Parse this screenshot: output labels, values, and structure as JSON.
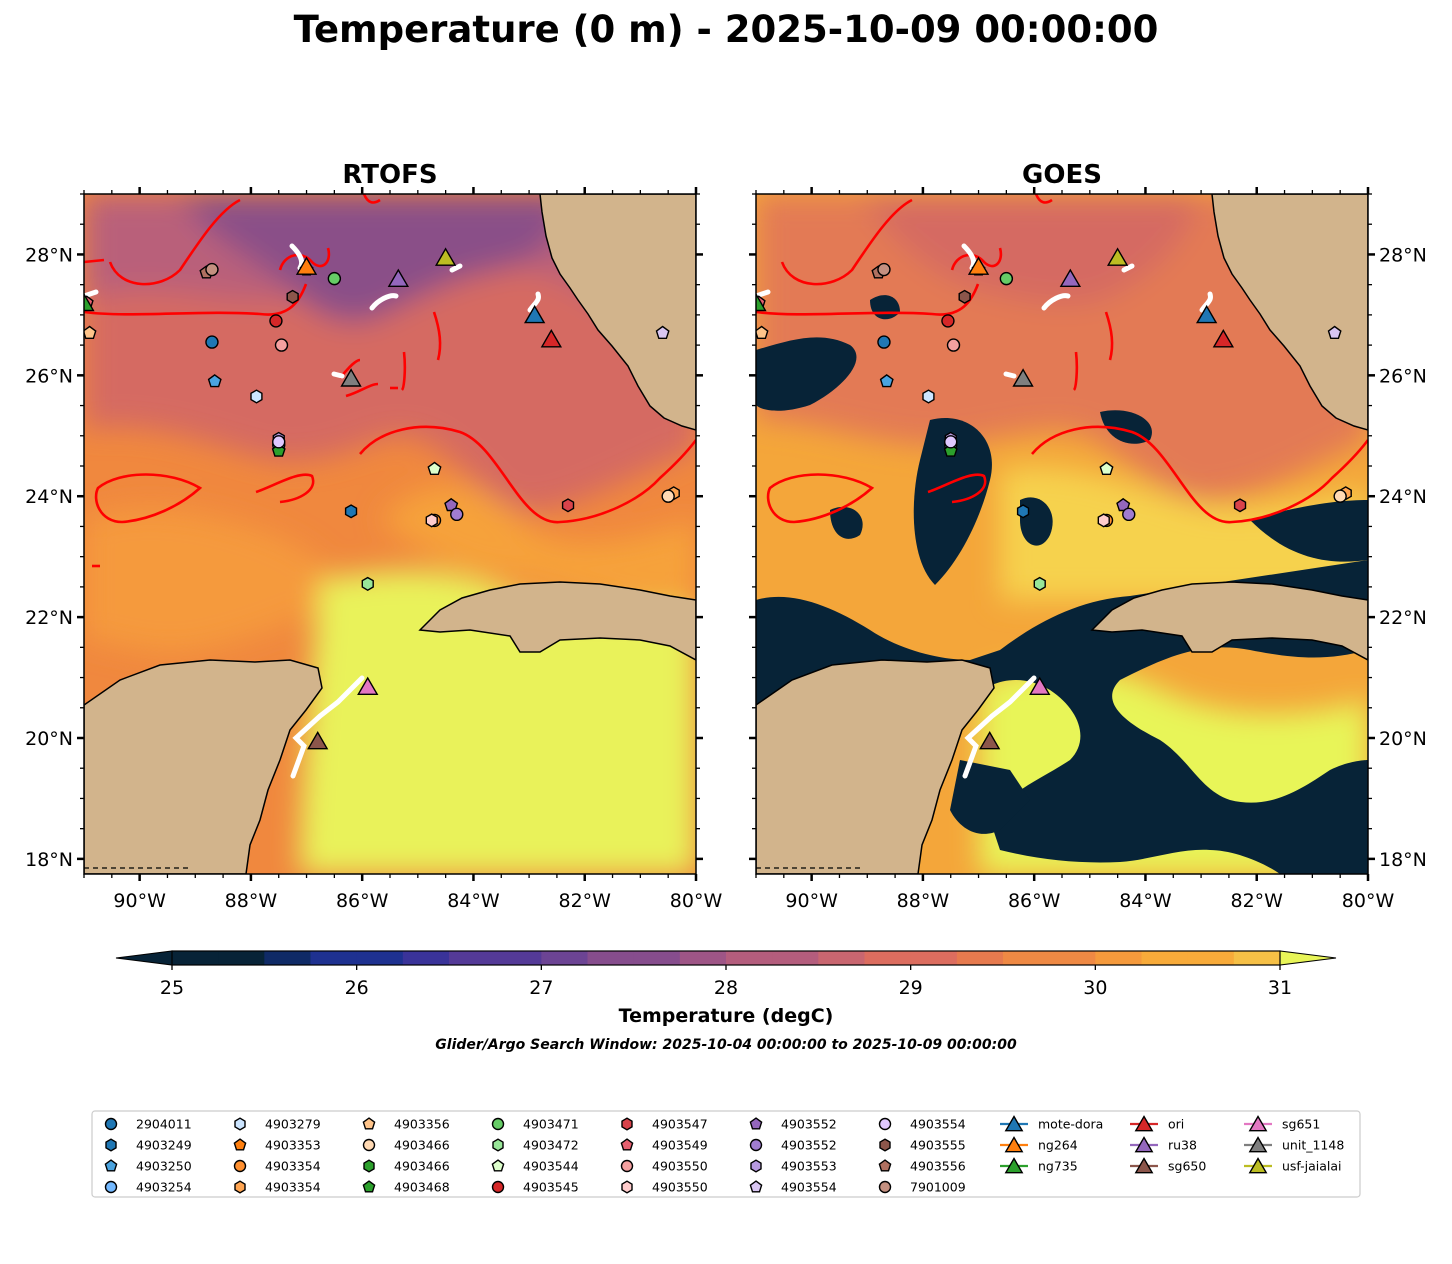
{
  "title": "Temperature (0 m) - 2025-10-09 00:00:00",
  "panels": [
    {
      "title": "RTOFS",
      "kind": "model"
    },
    {
      "title": "GOES",
      "kind": "satellite"
    }
  ],
  "map_extent": {
    "lon": [
      -91.0,
      -80.0
    ],
    "lat": [
      17.75,
      29.0
    ]
  },
  "lat_ticks": [
    {
      "value": 18,
      "label": "18°N"
    },
    {
      "value": 20,
      "label": "20°N"
    },
    {
      "value": 22,
      "label": "22°N"
    },
    {
      "value": 24,
      "label": "24°N"
    },
    {
      "value": 26,
      "label": "26°N"
    },
    {
      "value": 28,
      "label": "28°N"
    }
  ],
  "lon_ticks": [
    {
      "value": -90,
      "label": "90°W"
    },
    {
      "value": -88,
      "label": "88°W"
    },
    {
      "value": -86,
      "label": "86°W"
    },
    {
      "value": -84,
      "label": "84°W"
    },
    {
      "value": -82,
      "label": "82°W"
    },
    {
      "value": -80,
      "label": "80°W"
    }
  ],
  "colorbar": {
    "label": "Temperature (degC)",
    "min": 25,
    "max": 31,
    "step": 0.25,
    "ticks": [
      {
        "value": 25,
        "label": "25"
      },
      {
        "value": 26,
        "label": "26"
      },
      {
        "value": 27,
        "label": "27"
      },
      {
        "value": 28,
        "label": "28"
      },
      {
        "value": 29,
        "label": "29"
      },
      {
        "value": 30,
        "label": "30"
      },
      {
        "value": 31,
        "label": "31"
      }
    ],
    "colors": [
      "#072337",
      "#0f2a66",
      "#1e3190",
      "#3a3399",
      "#543a97",
      "#6c4494",
      "#864d8d",
      "#9e5586",
      "#b45d7d",
      "#c96670",
      "#dc6d5f",
      "#e67a4e",
      "#ef8944",
      "#f59a3c",
      "#f8ab3a",
      "#f6c046",
      "#e8f558"
    ]
  },
  "search_window": "Glider/Argo Search Window: 2025-10-04 00:00:00 to 2025-10-09 00:00:00",
  "land_color": "#d2b48c",
  "cloud_color": "#072337",
  "front_color": "#ff0000",
  "track_color": "#ffffff",
  "platforms": [
    {
      "name": "2904011",
      "marker": "circle",
      "color": "#1f77b4",
      "lon": -88.7,
      "lat": 26.55
    },
    {
      "name": "4903249",
      "marker": "hexagon",
      "color": "#1f77b4",
      "lon": -86.2,
      "lat": 23.75
    },
    {
      "name": "4903250",
      "marker": "pentagon",
      "color": "#4aa3df",
      "lon": -88.65,
      "lat": 25.9
    },
    {
      "name": "4903254",
      "marker": "circle",
      "color": "#74b9ff",
      "lon": -87.5,
      "lat": 24.85
    },
    {
      "name": "4903279",
      "marker": "hexagon",
      "color": "#cce5ff",
      "lon": -87.9,
      "lat": 25.65
    },
    {
      "name": "4903353",
      "marker": "pentagon",
      "color": "#ff7f0e",
      "lon": -87.0,
      "lat": 27.75
    },
    {
      "name": "4903354",
      "marker": "circle",
      "color": "#ff9030",
      "lon": -84.7,
      "lat": 23.6
    },
    {
      "name": "4903354",
      "marker": "hexagon",
      "color": "#ffa552",
      "lon": -80.4,
      "lat": 24.05
    },
    {
      "name": "4903356",
      "marker": "pentagon",
      "color": "#ffc48a",
      "lon": -90.9,
      "lat": 26.7
    },
    {
      "name": "4903466",
      "marker": "circle",
      "color": "#ffd9b3",
      "lon": -80.5,
      "lat": 24.0
    },
    {
      "name": "4903466",
      "marker": "hexagon",
      "color": "#2ca02c",
      "lon": -91.0,
      "lat": 27.2
    },
    {
      "name": "4903468",
      "marker": "pentagon",
      "color": "#2ca02c",
      "lon": -87.5,
      "lat": 24.75
    },
    {
      "name": "4903471",
      "marker": "circle",
      "color": "#66cc66",
      "lon": -86.5,
      "lat": 27.6
    },
    {
      "name": "4903472",
      "marker": "hexagon",
      "color": "#98e698",
      "lon": -85.9,
      "lat": 22.55
    },
    {
      "name": "4903544",
      "marker": "pentagon",
      "color": "#ddffcc",
      "lon": -84.7,
      "lat": 24.45
    },
    {
      "name": "4903545",
      "marker": "circle",
      "color": "#d62728",
      "lon": -87.55,
      "lat": 26.9
    },
    {
      "name": "4903547",
      "marker": "hexagon",
      "color": "#d9434b",
      "lon": -82.3,
      "lat": 23.85
    },
    {
      "name": "4903549",
      "marker": "pentagon",
      "color": "#e66070",
      "lon": -90.95,
      "lat": 27.2
    },
    {
      "name": "4903550",
      "marker": "circle",
      "color": "#f4a0a0",
      "lon": -87.45,
      "lat": 26.5
    },
    {
      "name": "4903550",
      "marker": "hexagon",
      "color": "#ffcccc",
      "lon": -84.75,
      "lat": 23.6
    },
    {
      "name": "4903552",
      "marker": "pentagon",
      "color": "#9467bd",
      "lon": -84.4,
      "lat": 23.85
    },
    {
      "name": "4903552",
      "marker": "circle",
      "color": "#a07cd0",
      "lon": -84.3,
      "lat": 23.7
    },
    {
      "name": "4903553",
      "marker": "hexagon",
      "color": "#b89ae0",
      "lon": -87.5,
      "lat": 24.95
    },
    {
      "name": "4903554",
      "marker": "pentagon",
      "color": "#d9c6f2",
      "lon": -80.6,
      "lat": 26.7
    },
    {
      "name": "4903554",
      "marker": "circle",
      "color": "#e0c8ff",
      "lon": -87.5,
      "lat": 24.9
    },
    {
      "name": "4903555",
      "marker": "hexagon",
      "color": "#8c564b",
      "lon": -87.25,
      "lat": 27.3
    },
    {
      "name": "4903556",
      "marker": "pentagon",
      "color": "#b07060",
      "lon": -88.8,
      "lat": 27.7
    },
    {
      "name": "7901009",
      "marker": "circle",
      "color": "#c49080",
      "lon": -88.7,
      "lat": 27.75
    },
    {
      "name": "mote-dora",
      "marker": "triangle",
      "color": "#1f77b4",
      "lon": -82.9,
      "lat": 27.0
    },
    {
      "name": "ng264",
      "marker": "triangle",
      "color": "#ff7f0e",
      "lon": -87.0,
      "lat": 27.8
    },
    {
      "name": "ng735",
      "marker": "triangle",
      "color": "#2ca02c",
      "lon": -91.0,
      "lat": 27.2
    },
    {
      "name": "ori",
      "marker": "triangle",
      "color": "#d62728",
      "lon": -82.6,
      "lat": 26.6
    },
    {
      "name": "ru38",
      "marker": "triangle",
      "color": "#9467bd",
      "lon": -85.35,
      "lat": 27.6
    },
    {
      "name": "sg650",
      "marker": "triangle",
      "color": "#8c564b",
      "lon": -86.8,
      "lat": 19.95
    },
    {
      "name": "sg651",
      "marker": "triangle",
      "color": "#e377c2",
      "lon": -85.9,
      "lat": 20.85
    },
    {
      "name": "unit_1148",
      "marker": "triangle",
      "color": "#7f7f7f",
      "lon": -86.2,
      "lat": 25.95
    },
    {
      "name": "usf-jaialai",
      "marker": "triangle",
      "color": "#bcbd22",
      "lon": -84.5,
      "lat": 27.95
    }
  ]
}
